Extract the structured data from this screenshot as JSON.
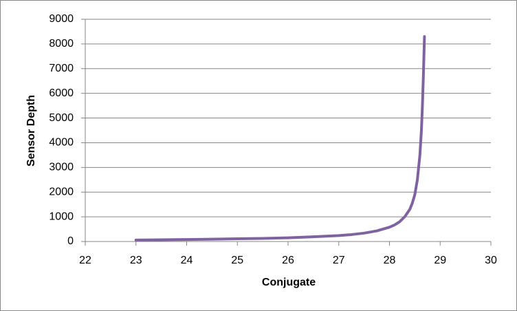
{
  "chart_data": {
    "type": "line",
    "x_label": "Conjugate",
    "y_label": "Sensor Depth",
    "x": [
      23,
      23.5,
      24,
      24.5,
      25,
      25.5,
      26,
      26.5,
      27,
      27.25,
      27.5,
      27.75,
      28,
      28.1,
      28.2,
      28.3,
      28.4,
      28.45,
      28.5,
      28.55,
      28.6,
      28.63,
      28.65,
      28.67,
      28.69
    ],
    "values": [
      60,
      70,
      80,
      95,
      110,
      125,
      150,
      190,
      240,
      280,
      340,
      430,
      580,
      670,
      800,
      1000,
      1300,
      1550,
      1900,
      2500,
      3500,
      4500,
      5500,
      6800,
      8300
    ],
    "color": "#7f63a1",
    "xlim": [
      22,
      30
    ],
    "xticks": [
      22,
      23,
      24,
      25,
      26,
      27,
      28,
      29,
      30
    ],
    "ylim": [
      0,
      9000
    ],
    "yticks": [
      0,
      1000,
      2000,
      3000,
      4000,
      5000,
      6000,
      7000,
      8000,
      9000
    ],
    "grid": true
  }
}
